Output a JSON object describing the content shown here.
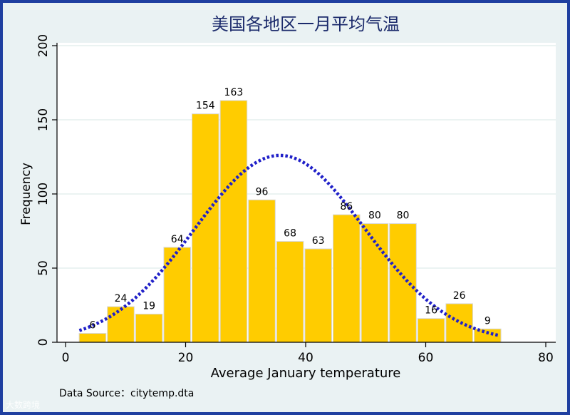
{
  "chart_data": {
    "type": "bar",
    "title": "美国各地区一月平均气温",
    "xlabel": "Average January temperature",
    "ylabel": "Frequency",
    "xlim": [
      0,
      80
    ],
    "ylim": [
      0,
      200
    ],
    "xticks": [
      0,
      20,
      40,
      60,
      80
    ],
    "yticks": [
      0,
      50,
      100,
      150,
      200
    ],
    "bin_centers": [
      4.5,
      9.2,
      13.9,
      18.6,
      23.3,
      28.0,
      32.7,
      37.4,
      42.1,
      46.8,
      51.5,
      56.2,
      60.9,
      65.6,
      70.3
    ],
    "values": [
      6,
      24,
      19,
      64,
      154,
      163,
      96,
      68,
      63,
      86,
      80,
      80,
      16,
      26,
      9
    ],
    "bar_color": "#ffcc00",
    "normal_curve": {
      "style": "dotted",
      "color": "#2020c8",
      "mean": 35.7,
      "peak": 126,
      "sd": 14.2,
      "x_range": [
        2.3,
        72.5
      ]
    },
    "grid": true,
    "legend": "none"
  },
  "note": "Data Source：citytemp.dta",
  "watermark": "大数跨境",
  "colors": {
    "frame": "#1f3fa0",
    "plot_bg": "#ffffff",
    "outer_bg": "#eaf2f3",
    "title": "#1b2a6b"
  }
}
